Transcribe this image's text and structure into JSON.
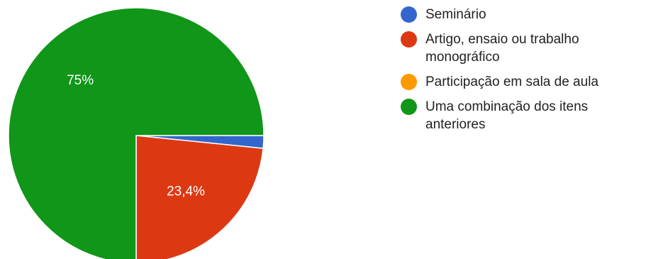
{
  "chart_data": {
    "type": "pie",
    "slices": [
      {
        "label": "Seminário",
        "value": 1.6,
        "color": "#3366cc",
        "display_label": ""
      },
      {
        "label": "Artigo, ensaio ou trabalho monográfico",
        "value": 23.4,
        "color": "#dc3912",
        "display_label": "23,4%"
      },
      {
        "label": "Participação em sala de aula",
        "value": 0,
        "color": "#ff9900",
        "display_label": ""
      },
      {
        "label": "Uma combinação dos itens anteriores",
        "value": 75,
        "color": "#109618",
        "display_label": "75%"
      }
    ],
    "legend_position": "right"
  }
}
